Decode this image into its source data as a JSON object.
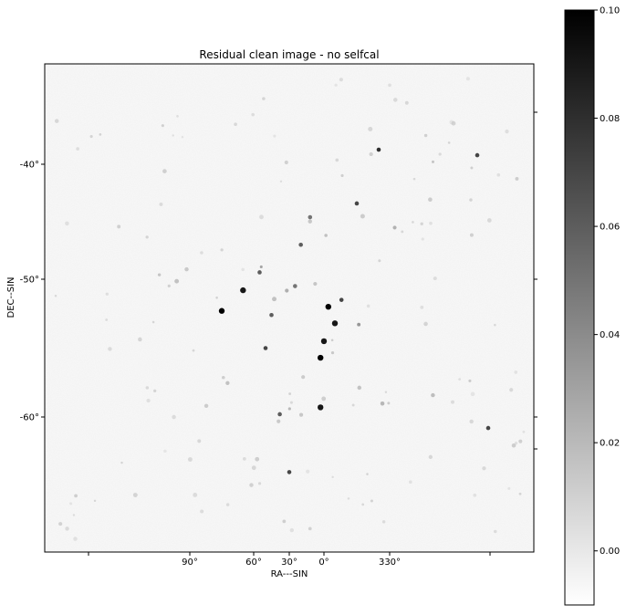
{
  "chart_data": {
    "type": "heatmap",
    "title": "Residual clean image - no selfcal",
    "xlabel": "RA---SIN",
    "ylabel": "DEC--SIN",
    "xticks": [
      {
        "label": "90°"
      },
      {
        "label": "60°"
      },
      {
        "label": "30°"
      },
      {
        "label": "0°"
      },
      {
        "label": "330°"
      }
    ],
    "yticks": [
      {
        "label": "-40°"
      },
      {
        "label": "-50°"
      },
      {
        "label": "-60°"
      }
    ],
    "colorbar": {
      "cmap": "gray_r",
      "range": [
        -0.01,
        0.1
      ],
      "ticks": [
        "0.00",
        "0.02",
        "0.04",
        "0.06",
        "0.08",
        "0.10"
      ],
      "tick_values": [
        0.0,
        0.02,
        0.04,
        0.06,
        0.08,
        0.1
      ]
    },
    "grid": false,
    "sources": [
      {
        "ra": 358,
        "dec": -52.0,
        "value": 0.1
      },
      {
        "ra": 3,
        "dec": -55.7,
        "value": 0.1
      },
      {
        "ra": 355,
        "dec": -53.2,
        "value": 0.09
      },
      {
        "ra": 0,
        "dec": -54.5,
        "value": 0.09
      },
      {
        "ra": 75,
        "dec": -52.3,
        "value": 0.1
      },
      {
        "ra": 65,
        "dec": -50.8,
        "value": 0.09
      },
      {
        "ra": 3,
        "dec": -59.3,
        "value": 0.09
      },
      {
        "ra": 352,
        "dec": -51.5,
        "value": 0.07
      },
      {
        "ra": 12,
        "dec": -45.5,
        "value": 0.05
      },
      {
        "ra": 335,
        "dec": -40.6,
        "value": 0.08
      },
      {
        "ra": 345,
        "dec": -44.5,
        "value": 0.07
      },
      {
        "ra": 55,
        "dec": -49.5,
        "value": 0.06
      },
      {
        "ra": 45,
        "dec": -52.6,
        "value": 0.06
      },
      {
        "ra": 25,
        "dec": -50.5,
        "value": 0.05
      },
      {
        "ra": 20,
        "dec": -47.5,
        "value": 0.06
      },
      {
        "ra": 50,
        "dec": -55.0,
        "value": 0.07
      },
      {
        "ra": 38,
        "dec": -59.8,
        "value": 0.06
      },
      {
        "ra": 30,
        "dec": -64.0,
        "value": 0.07
      },
      {
        "ra": 290,
        "dec": -41.0,
        "value": 0.07
      },
      {
        "ra": 285,
        "dec": -60.8,
        "value": 0.07
      }
    ]
  }
}
